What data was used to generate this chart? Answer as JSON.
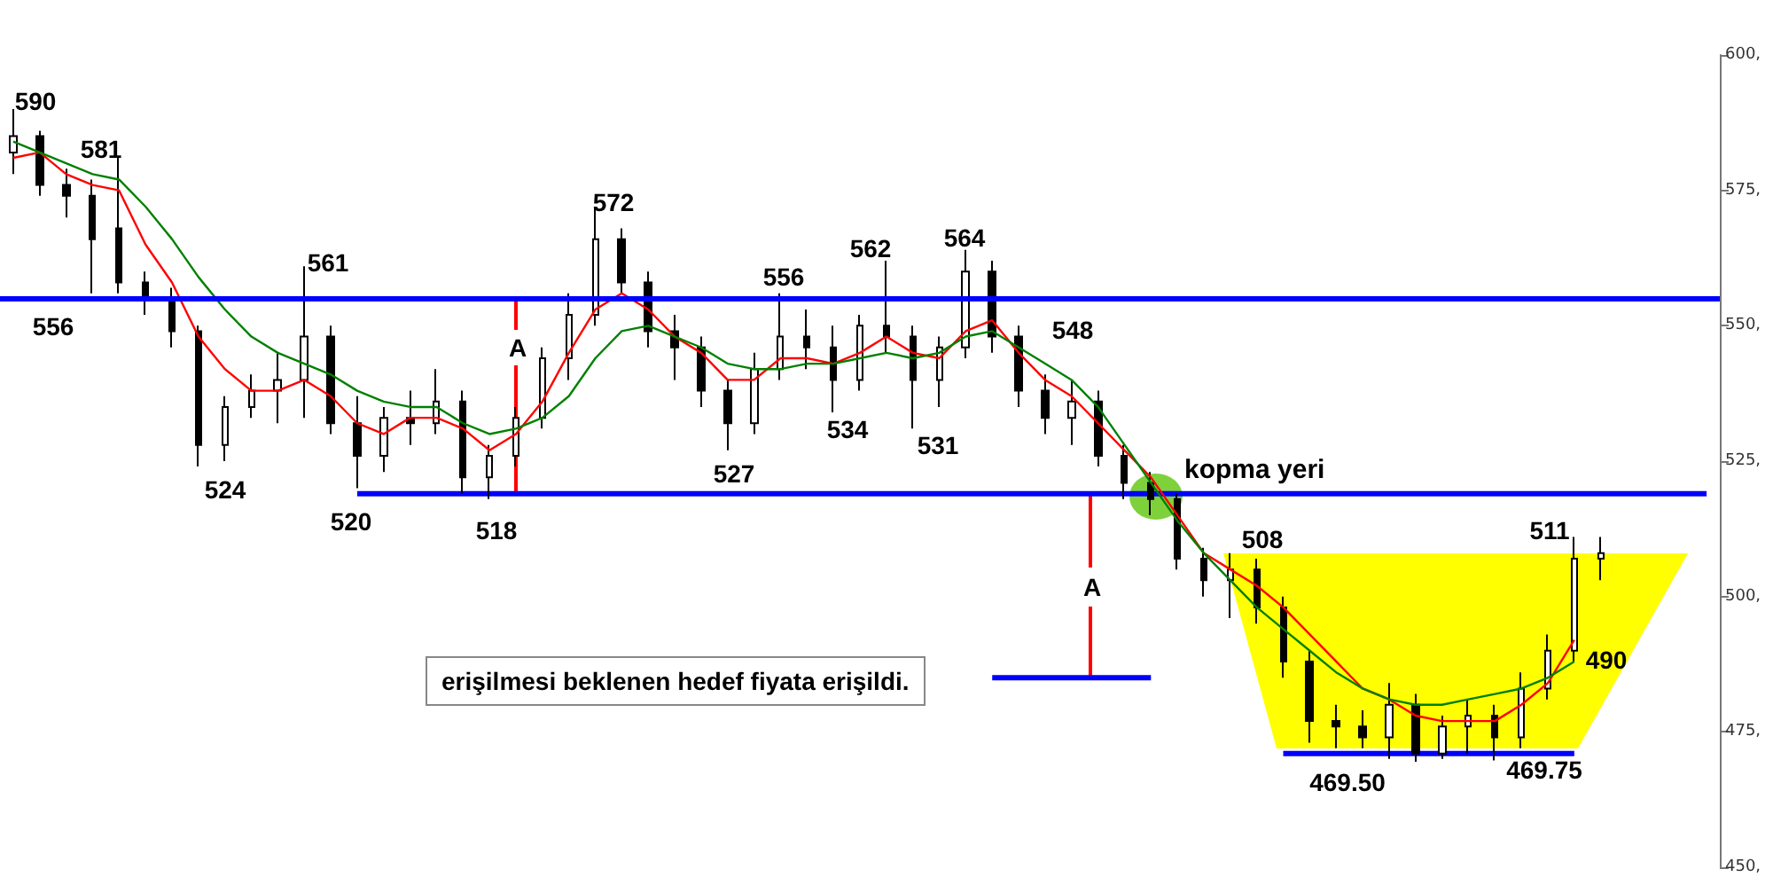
{
  "chart_data": {
    "type": "candlestick",
    "categories": [
      null,
      null,
      null,
      null,
      null,
      null,
      null,
      null,
      null,
      null,
      null,
      null,
      null,
      null,
      null,
      null,
      null,
      null,
      null,
      null,
      null,
      null,
      null,
      null,
      null,
      null,
      null,
      null,
      null,
      null,
      null,
      null,
      null,
      null,
      null,
      null,
      null,
      null,
      null,
      null,
      null,
      null,
      null,
      null,
      null,
      null,
      null,
      null,
      null,
      null,
      null,
      null,
      null,
      null,
      null,
      null,
      null,
      null,
      null,
      null,
      null,
      null,
      null,
      null,
      null
    ],
    "ohlc": [
      [
        582,
        590,
        578,
        585
      ],
      [
        585,
        586,
        574,
        576
      ],
      [
        576,
        579,
        570,
        574
      ],
      [
        574,
        577,
        556,
        566
      ],
      [
        568,
        581,
        556,
        558
      ],
      [
        558,
        560,
        552,
        555
      ],
      [
        555,
        557,
        546,
        549
      ],
      [
        549,
        550,
        524,
        528
      ],
      [
        528,
        537,
        525,
        535
      ],
      [
        535,
        541,
        533,
        538
      ],
      [
        538,
        545,
        532,
        540
      ],
      [
        540,
        561,
        533,
        548
      ],
      [
        548,
        550,
        530,
        532
      ],
      [
        532,
        537,
        520,
        526
      ],
      [
        526,
        535,
        523,
        533
      ],
      [
        533,
        538,
        528,
        532
      ],
      [
        532,
        542,
        530,
        536
      ],
      [
        536,
        538,
        519,
        522
      ],
      [
        522,
        528,
        518,
        526
      ],
      [
        526,
        535,
        524,
        533
      ],
      [
        533,
        546,
        531,
        544
      ],
      [
        544,
        556,
        540,
        552
      ],
      [
        552,
        572,
        550,
        566
      ],
      [
        566,
        568,
        556,
        558
      ],
      [
        558,
        560,
        546,
        549
      ],
      [
        549,
        552,
        540,
        546
      ],
      [
        546,
        548,
        535,
        538
      ],
      [
        538,
        540,
        527,
        532
      ],
      [
        532,
        545,
        530,
        542
      ],
      [
        542,
        556,
        540,
        548
      ],
      [
        548,
        553,
        542,
        546
      ],
      [
        546,
        550,
        534,
        540
      ],
      [
        540,
        552,
        538,
        550
      ],
      [
        550,
        562,
        545,
        548
      ],
      [
        548,
        550,
        531,
        540
      ],
      [
        540,
        548,
        535,
        546
      ],
      [
        546,
        564,
        544,
        560
      ],
      [
        560,
        562,
        545,
        548
      ],
      [
        548,
        550,
        535,
        538
      ],
      [
        538,
        541,
        530,
        533
      ],
      [
        533,
        540,
        528,
        536
      ],
      [
        536,
        538,
        524,
        526
      ],
      [
        526,
        528,
        518,
        521
      ],
      [
        521,
        523,
        515,
        518
      ],
      [
        518,
        519,
        505,
        507
      ],
      [
        507,
        509,
        500,
        503
      ],
      [
        503,
        508,
        496,
        505
      ],
      [
        505,
        507,
        495,
        498
      ],
      [
        498,
        500,
        485,
        488
      ],
      [
        488,
        490,
        473,
        477
      ],
      [
        477,
        480,
        472,
        476
      ],
      [
        476,
        479,
        472,
        474
      ],
      [
        474,
        484,
        470,
        480
      ],
      [
        480,
        482,
        469.5,
        471
      ],
      [
        471,
        478,
        470,
        476
      ],
      [
        476,
        481,
        471,
        478
      ],
      [
        478,
        480,
        469.75,
        474
      ],
      [
        474,
        486,
        472,
        483
      ],
      [
        483,
        493,
        481,
        490
      ],
      [
        490,
        511,
        488,
        507
      ],
      [
        507,
        511,
        503,
        508
      ],
      null,
      null,
      null,
      null
    ],
    "color": "#000000",
    "series": [
      {
        "type": "line",
        "color": "#ff0000",
        "values": [
          581,
          582,
          578,
          576,
          575,
          565,
          558,
          548,
          542,
          538,
          538,
          540,
          537,
          532,
          530,
          533,
          533,
          531,
          527,
          530,
          536,
          545,
          553,
          556,
          553,
          548,
          545,
          540,
          540,
          544,
          544,
          543,
          545,
          548,
          545,
          544,
          549,
          551,
          545,
          540,
          537,
          532,
          527,
          522,
          515,
          508,
          505,
          502,
          498,
          493,
          488,
          483,
          481,
          478,
          477,
          477,
          477,
          480,
          484,
          492,
          null,
          null,
          null,
          null,
          null
        ]
      },
      {
        "type": "line",
        "color": "#008000",
        "values": [
          584,
          582,
          580,
          578,
          577,
          572,
          566,
          559,
          553,
          548,
          545,
          543,
          541,
          538,
          536,
          535,
          535,
          532,
          530,
          531,
          533,
          537,
          544,
          549,
          550,
          548,
          546,
          543,
          542,
          542,
          543,
          543,
          544,
          545,
          544,
          545,
          548,
          549,
          546,
          543,
          540,
          535,
          528,
          521,
          514,
          508,
          503,
          498,
          494,
          490,
          486,
          483,
          481,
          480,
          480,
          481,
          482,
          483,
          485,
          488,
          null,
          null,
          null,
          null,
          null
        ]
      },
      {
        "type": "line",
        "color": "#0000ff",
        "values": [
          null,
          null,
          null,
          null,
          null,
          null,
          null,
          null,
          null,
          null,
          null,
          null,
          null,
          519,
          519,
          519,
          519,
          519,
          519,
          519,
          519,
          519,
          519,
          519,
          519,
          519,
          519,
          519,
          519,
          519,
          519,
          519,
          519,
          519,
          519,
          519,
          519,
          519,
          519,
          519,
          519,
          519,
          519,
          519,
          519,
          519,
          519,
          519,
          519,
          519,
          519,
          519,
          519,
          519,
          519,
          519,
          519,
          519,
          519,
          519,
          519,
          519,
          519,
          519,
          519
        ]
      },
      {
        "type": "line",
        "color": "#0000ff",
        "values": [
          null,
          null,
          null,
          null,
          null,
          null,
          null,
          null,
          null,
          null,
          null,
          null,
          null,
          null,
          null,
          null,
          null,
          null,
          null,
          null,
          null,
          null,
          null,
          null,
          null,
          null,
          null,
          null,
          null,
          null,
          null,
          null,
          null,
          null,
          null,
          null,
          null,
          485,
          485,
          485,
          485,
          485,
          485,
          485,
          null,
          null,
          null,
          null,
          null,
          null,
          null,
          null,
          null,
          null,
          null,
          null,
          null,
          null,
          null,
          null,
          null,
          null,
          null,
          null,
          null
        ]
      },
      {
        "type": "line",
        "color": "#0000ff",
        "values": [
          null,
          null,
          null,
          null,
          null,
          null,
          null,
          null,
          null,
          null,
          null,
          null,
          null,
          null,
          null,
          null,
          null,
          null,
          null,
          null,
          null,
          null,
          null,
          null,
          null,
          null,
          null,
          null,
          null,
          null,
          null,
          null,
          null,
          null,
          null,
          null,
          null,
          null,
          null,
          null,
          null,
          null,
          null,
          null,
          null,
          null,
          null,
          null,
          471,
          471,
          471,
          471,
          471,
          471,
          471,
          471,
          471,
          471,
          471,
          471,
          null,
          null,
          null,
          null,
          null
        ]
      }
    ],
    "ref_lines": [
      {
        "axis": "y",
        "value": 555,
        "color": "#0000ff"
      }
    ],
    "ylim": [
      450,
      600
    ],
    "yticks": [
      {
        "value": 450,
        "label": "450,"
      },
      {
        "value": 475,
        "label": "475,"
      },
      {
        "value": 500,
        "label": "500,"
      },
      {
        "value": 525,
        "label": "525,"
      },
      {
        "value": 550,
        "label": "550,"
      },
      {
        "value": 575,
        "label": "575,"
      },
      {
        "value": 600,
        "label": "600,"
      }
    ],
    "tick_labels": "y",
    "marker": "none",
    "line_style": "solid",
    "annotations": [
      "590",
      "581",
      "556",
      "524",
      "561",
      "520",
      "518",
      "572",
      "527",
      "556",
      "534",
      "562",
      "531",
      "564",
      "548",
      "508",
      "511",
      "490",
      "469.50",
      "469.75",
      "A",
      "A",
      "kopma yeri",
      "erişilmesi beklenen hedef fiyata erişildi."
    ]
  }
}
